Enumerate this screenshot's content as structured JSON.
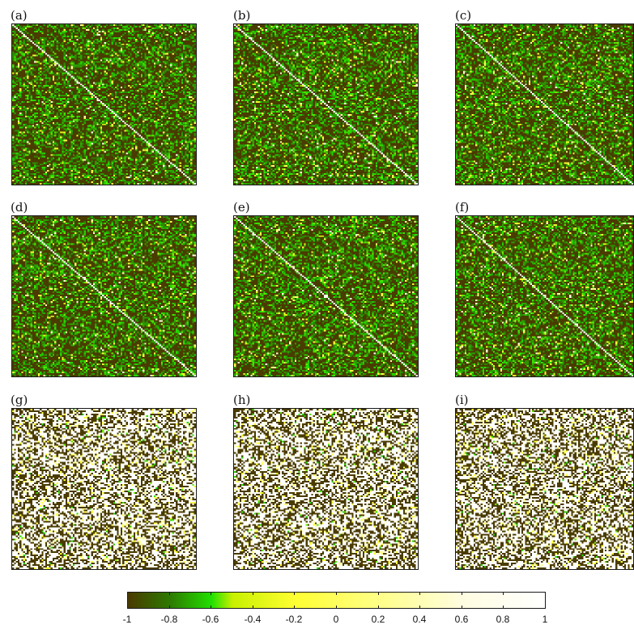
{
  "chart_data": {
    "type": "heatmap",
    "matrix_size": 100,
    "colormap": {
      "stops": [
        {
          "value": -1.0,
          "color": "#4a3b00"
        },
        {
          "value": -0.8,
          "color": "#2e7a00"
        },
        {
          "value": -0.6,
          "color": "#22e000"
        },
        {
          "value": -0.5,
          "color": "#c8f000"
        },
        {
          "value": -0.2,
          "color": "#ffff33"
        },
        {
          "value": 0.2,
          "color": "#ffff88"
        },
        {
          "value": 0.6,
          "color": "#fffde0"
        },
        {
          "value": 1.0,
          "color": "#ffffff"
        }
      ],
      "ticks": [
        "-1",
        "-0.8",
        "-0.6",
        "-0.4",
        "-0.2",
        "0",
        "0.2",
        "0.4",
        "0.6",
        "0.8",
        "1"
      ],
      "range": [
        -1,
        1
      ]
    },
    "panels": [
      {
        "label": "(a)",
        "pattern": "diagonal"
      },
      {
        "label": "(b)",
        "pattern": "diagonal"
      },
      {
        "label": "(c)",
        "pattern": "diagonal"
      },
      {
        "label": "(d)",
        "pattern": "diagonal"
      },
      {
        "label": "(e)",
        "pattern": "diagonal"
      },
      {
        "label": "(f)",
        "pattern": "diagonal"
      },
      {
        "label": "(g)",
        "pattern": "random"
      },
      {
        "label": "(h)",
        "pattern": "random"
      },
      {
        "label": "(i)",
        "pattern": "random"
      }
    ]
  }
}
